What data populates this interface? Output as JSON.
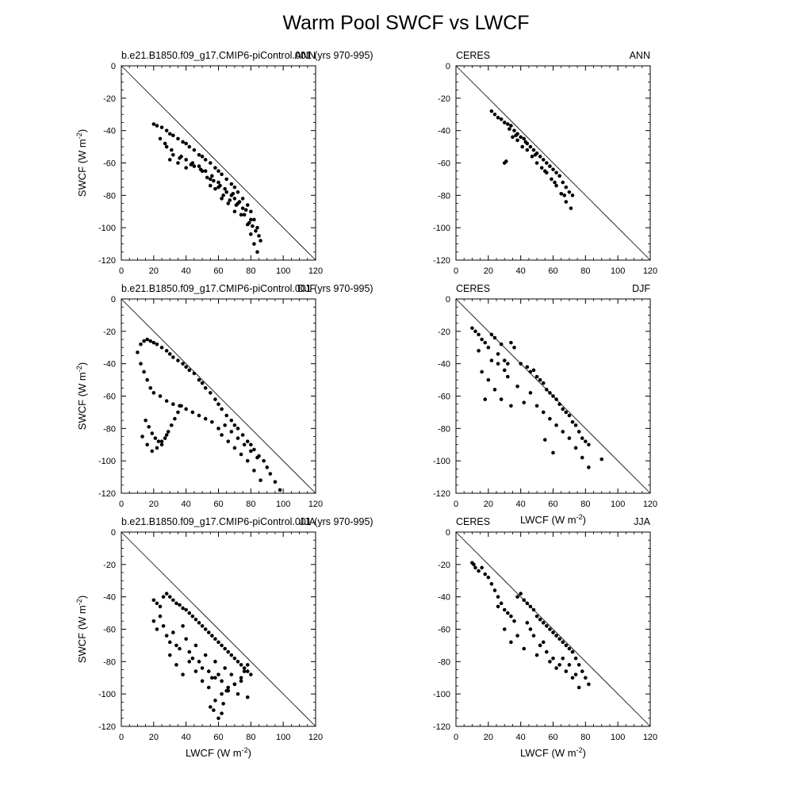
{
  "figure": {
    "title": "Warm Pool SWCF vs LWCF"
  },
  "chart_data": [
    {
      "type": "scatter",
      "left_label": "b.e21.B1850.f09_g17.CMIP6-piControl.001 (yrs 970-995)",
      "right_label": "ANN",
      "xlabel": "",
      "ylabel": "SWCF (W m-2)",
      "xlim": [
        0,
        120
      ],
      "ylim": [
        -120,
        0
      ],
      "xticks": [
        0,
        20,
        40,
        60,
        80,
        100,
        120
      ],
      "yticks": [
        0,
        -20,
        -40,
        -60,
        -80,
        -100,
        -120
      ],
      "reference_line": [
        [
          0,
          0
        ],
        [
          120,
          -120
        ]
      ],
      "grid": false,
      "x": [
        20,
        22,
        25,
        28,
        30,
        32,
        35,
        38,
        40,
        42,
        45,
        48,
        50,
        52,
        55,
        58,
        60,
        62,
        65,
        68,
        70,
        72,
        75,
        78,
        80,
        82,
        84,
        86,
        24,
        28,
        32,
        36,
        40,
        44,
        48,
        52,
        56,
        60,
        64,
        68,
        72,
        30,
        35,
        40,
        45,
        50,
        55,
        60,
        65,
        70,
        75,
        80,
        85,
        62,
        66,
        70,
        74,
        78,
        80,
        82,
        84,
        55,
        58,
        63,
        67,
        71,
        76,
        79,
        83,
        27,
        31,
        37,
        43,
        49,
        53,
        57,
        61,
        69,
        73,
        77,
        81
      ],
      "y": [
        -36,
        -37,
        -38,
        -40,
        -42,
        -43,
        -45,
        -47,
        -48,
        -50,
        -52,
        -55,
        -56,
        -58,
        -60,
        -63,
        -65,
        -67,
        -70,
        -73,
        -75,
        -78,
        -82,
        -86,
        -90,
        -95,
        -100,
        -108,
        -45,
        -50,
        -55,
        -57,
        -58,
        -60,
        -62,
        -65,
        -68,
        -72,
        -76,
        -80,
        -85,
        -58,
        -60,
        -63,
        -62,
        -65,
        -70,
        -75,
        -78,
        -82,
        -88,
        -95,
        -105,
        -82,
        -85,
        -90,
        -92,
        -98,
        -104,
        -110,
        -115,
        -74,
        -76,
        -80,
        -83,
        -86,
        -92,
        -97,
        -102,
        -48,
        -52,
        -56,
        -61,
        -64,
        -69,
        -71,
        -74,
        -79,
        -84,
        -89,
        -99
      ]
    },
    {
      "type": "scatter",
      "left_label": "CERES",
      "right_label": "ANN",
      "xlabel": "",
      "ylabel": "",
      "xlim": [
        0,
        120
      ],
      "ylim": [
        -120,
        0
      ],
      "xticks": [
        0,
        20,
        40,
        60,
        80,
        100,
        120
      ],
      "yticks": [
        0,
        -20,
        -40,
        -60,
        -80,
        -100,
        -120
      ],
      "reference_line": [
        [
          0,
          0
        ],
        [
          120,
          -120
        ]
      ],
      "grid": false,
      "x": [
        22,
        24,
        26,
        28,
        30,
        32,
        34,
        36,
        38,
        40,
        42,
        44,
        46,
        48,
        50,
        52,
        54,
        56,
        58,
        60,
        62,
        64,
        66,
        68,
        70,
        72,
        30,
        31,
        35,
        38,
        41,
        44,
        47,
        50,
        53,
        56,
        59,
        62,
        65,
        68,
        33,
        37,
        43,
        49,
        55,
        61,
        67,
        71
      ],
      "y": [
        -28,
        -30,
        -32,
        -33,
        -35,
        -36,
        -37,
        -40,
        -42,
        -44,
        -45,
        -48,
        -50,
        -52,
        -54,
        -56,
        -58,
        -60,
        -62,
        -64,
        -66,
        -68,
        -72,
        -75,
        -78,
        -80,
        -60,
        -59,
        -44,
        -46,
        -50,
        -52,
        -56,
        -60,
        -63,
        -66,
        -70,
        -74,
        -79,
        -84,
        -39,
        -43,
        -47,
        -55,
        -65,
        -72,
        -80,
        -88
      ]
    },
    {
      "type": "scatter",
      "left_label": "b.e21.B1850.f09_g17.CMIP6-piControl.001 (yrs 970-995)",
      "right_label": "DJF",
      "xlabel": "",
      "ylabel": "SWCF (W m-2)",
      "xlim": [
        0,
        120
      ],
      "ylim": [
        -120,
        0
      ],
      "xticks": [
        0,
        20,
        40,
        60,
        80,
        100,
        120
      ],
      "yticks": [
        0,
        -20,
        -40,
        -60,
        -80,
        -100,
        -120
      ],
      "reference_line": [
        [
          0,
          0
        ],
        [
          120,
          -120
        ]
      ],
      "grid": false,
      "x": [
        10,
        12,
        14,
        16,
        18,
        20,
        22,
        25,
        28,
        30,
        32,
        35,
        38,
        40,
        42,
        45,
        48,
        50,
        52,
        55,
        58,
        60,
        62,
        65,
        68,
        70,
        72,
        75,
        78,
        80,
        82,
        85,
        88,
        90,
        92,
        95,
        98,
        12,
        14,
        16,
        18,
        20,
        24,
        28,
        32,
        36,
        40,
        44,
        48,
        52,
        56,
        60,
        15,
        17,
        19,
        21,
        23,
        25,
        27,
        29,
        31,
        33,
        35,
        37,
        13,
        16,
        19,
        22,
        25,
        28,
        62,
        66,
        70,
        74,
        78,
        82,
        86,
        64,
        68,
        72,
        76,
        80,
        84
      ],
      "y": [
        -33,
        -28,
        -26,
        -25,
        -26,
        -27,
        -28,
        -30,
        -32,
        -34,
        -36,
        -38,
        -40,
        -42,
        -44,
        -46,
        -50,
        -52,
        -55,
        -58,
        -62,
        -65,
        -68,
        -72,
        -75,
        -78,
        -80,
        -84,
        -88,
        -90,
        -93,
        -97,
        -100,
        -104,
        -108,
        -113,
        -118,
        -40,
        -45,
        -50,
        -55,
        -58,
        -60,
        -63,
        -65,
        -66,
        -68,
        -70,
        -72,
        -74,
        -76,
        -80,
        -75,
        -79,
        -83,
        -86,
        -88,
        -90,
        -86,
        -82,
        -78,
        -74,
        -70,
        -66,
        -85,
        -90,
        -94,
        -92,
        -88,
        -84,
        -84,
        -88,
        -92,
        -96,
        -100,
        -106,
        -112,
        -78,
        -82,
        -86,
        -90,
        -94,
        -98
      ]
    },
    {
      "type": "scatter",
      "left_label": "CERES",
      "right_label": "DJF",
      "xlabel": "LWCF (W m-2)",
      "ylabel": "",
      "xlim": [
        0,
        120
      ],
      "ylim": [
        -120,
        0
      ],
      "xticks": [
        0,
        20,
        40,
        60,
        80,
        100,
        120
      ],
      "yticks": [
        0,
        -20,
        -40,
        -60,
        -80,
        -100,
        -120
      ],
      "reference_line": [
        [
          0,
          0
        ],
        [
          120,
          -120
        ]
      ],
      "grid": false,
      "x": [
        10,
        12,
        14,
        16,
        18,
        20,
        22,
        24,
        26,
        28,
        30,
        32,
        34,
        36,
        40,
        44,
        46,
        48,
        50,
        52,
        54,
        56,
        58,
        60,
        62,
        64,
        66,
        68,
        70,
        72,
        74,
        76,
        78,
        80,
        82,
        90,
        14,
        16,
        18,
        20,
        22,
        24,
        26,
        28,
        30,
        32,
        34,
        38,
        42,
        46,
        50,
        54,
        58,
        62,
        66,
        70,
        74,
        78,
        82,
        55,
        60
      ],
      "y": [
        -18,
        -20,
        -22,
        -25,
        -27,
        -30,
        -22,
        -24,
        -34,
        -28,
        -38,
        -40,
        -27,
        -30,
        -40,
        -42,
        -45,
        -44,
        -48,
        -50,
        -52,
        -56,
        -58,
        -60,
        -62,
        -65,
        -68,
        -70,
        -72,
        -76,
        -78,
        -82,
        -86,
        -88,
        -90,
        -99,
        -32,
        -45,
        -62,
        -50,
        -38,
        -56,
        -40,
        -62,
        -44,
        -48,
        -66,
        -54,
        -64,
        -58,
        -66,
        -70,
        -74,
        -78,
        -82,
        -86,
        -92,
        -98,
        -104,
        -87,
        -95
      ]
    },
    {
      "type": "scatter",
      "left_label": "b.e21.B1850.f09_g17.CMIP6-piControl.001 (yrs 970-995)",
      "right_label": "JJA",
      "xlabel": "LWCF (W m-2)",
      "ylabel": "SWCF (W m-2)",
      "xlim": [
        0,
        120
      ],
      "ylim": [
        -120,
        0
      ],
      "xticks": [
        0,
        20,
        40,
        60,
        80,
        100,
        120
      ],
      "yticks": [
        0,
        -20,
        -40,
        -60,
        -80,
        -100,
        -120
      ],
      "reference_line": [
        [
          0,
          0
        ],
        [
          120,
          -120
        ]
      ],
      "grid": false,
      "x": [
        20,
        22,
        24,
        26,
        28,
        30,
        32,
        34,
        36,
        38,
        40,
        42,
        44,
        46,
        48,
        50,
        52,
        54,
        56,
        58,
        60,
        62,
        64,
        66,
        68,
        70,
        72,
        74,
        76,
        78,
        80,
        20,
        22,
        24,
        26,
        28,
        30,
        32,
        34,
        36,
        38,
        40,
        42,
        44,
        46,
        48,
        50,
        52,
        54,
        56,
        58,
        60,
        62,
        64,
        66,
        68,
        70,
        72,
        74,
        76,
        78,
        30,
        34,
        38,
        42,
        46,
        50,
        54,
        58,
        62,
        66,
        70,
        74,
        78,
        55,
        58,
        60,
        62,
        65,
        57,
        63
      ],
      "y": [
        -42,
        -44,
        -46,
        -40,
        -38,
        -40,
        -42,
        -44,
        -45,
        -47,
        -48,
        -50,
        -52,
        -54,
        -56,
        -58,
        -60,
        -62,
        -64,
        -66,
        -68,
        -70,
        -72,
        -74,
        -76,
        -78,
        -80,
        -82,
        -84,
        -86,
        -88,
        -55,
        -60,
        -52,
        -58,
        -64,
        -68,
        -62,
        -70,
        -72,
        -58,
        -66,
        -74,
        -78,
        -70,
        -80,
        -84,
        -76,
        -86,
        -90,
        -80,
        -88,
        -92,
        -84,
        -96,
        -88,
        -94,
        -100,
        -92,
        -86,
        -102,
        -76,
        -82,
        -88,
        -80,
        -86,
        -92,
        -96,
        -90,
        -100,
        -98,
        -94,
        -90,
        -82,
        -108,
        -104,
        -115,
        -112,
        -98,
        -110,
        -106
      ]
    },
    {
      "type": "scatter",
      "left_label": "CERES",
      "right_label": "JJA",
      "xlabel": "LWCF (W m-2)",
      "ylabel": "",
      "xlim": [
        0,
        120
      ],
      "ylim": [
        -120,
        0
      ],
      "xticks": [
        0,
        20,
        40,
        60,
        80,
        100,
        120
      ],
      "yticks": [
        0,
        -20,
        -40,
        -60,
        -80,
        -100,
        -120
      ],
      "reference_line": [
        [
          0,
          0
        ],
        [
          120,
          -120
        ]
      ],
      "grid": false,
      "x": [
        10,
        11,
        12,
        14,
        16,
        18,
        20,
        22,
        24,
        26,
        28,
        30,
        32,
        34,
        36,
        38,
        40,
        42,
        44,
        46,
        48,
        50,
        52,
        54,
        56,
        58,
        60,
        62,
        64,
        66,
        68,
        70,
        72,
        74,
        76,
        78,
        80,
        82,
        26,
        30,
        34,
        38,
        42,
        46,
        50,
        54,
        58,
        62,
        66,
        70,
        74,
        44,
        48,
        52,
        56,
        60,
        64,
        68,
        72,
        76
      ],
      "y": [
        -19,
        -20,
        -22,
        -24,
        -22,
        -26,
        -28,
        -32,
        -36,
        -40,
        -44,
        -48,
        -50,
        -52,
        -55,
        -40,
        -38,
        -42,
        -44,
        -46,
        -48,
        -52,
        -54,
        -56,
        -58,
        -60,
        -62,
        -64,
        -66,
        -68,
        -70,
        -72,
        -74,
        -78,
        -82,
        -86,
        -90,
        -94,
        -46,
        -60,
        -68,
        -64,
        -72,
        -60,
        -76,
        -68,
        -80,
        -84,
        -78,
        -82,
        -88,
        -56,
        -64,
        -70,
        -74,
        -78,
        -82,
        -86,
        -90,
        -96
      ]
    }
  ]
}
